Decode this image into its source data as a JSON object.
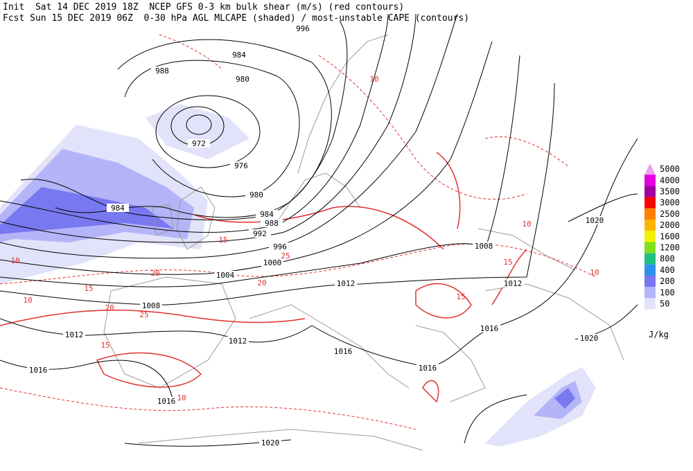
{
  "header": {
    "lines": [
      "Init  Sat 14 DEC 2019 18Z  NCEP GFS 0-3 km bulk shear (m/s) (red contours)",
      "Fcst Sun 15 DEC 2019 06Z  0-30 hPa AGL MLCAPE (shaded) / most-unstable CAPE (contours)"
    ]
  },
  "legend": {
    "unit": "J/kg",
    "levels": [
      {
        "label": "5000",
        "color": "#f0a0f0"
      },
      {
        "label": "4000",
        "color": "#e000e0"
      },
      {
        "label": "3500",
        "color": "#a000a0"
      },
      {
        "label": "3000",
        "color": "#ff0000"
      },
      {
        "label": "2500",
        "color": "#ff8000"
      },
      {
        "label": "2000",
        "color": "#ffb400"
      },
      {
        "label": "1600",
        "color": "#f0f000"
      },
      {
        "label": "1200",
        "color": "#80e020"
      },
      {
        "label": "800",
        "color": "#20c080"
      },
      {
        "label": "400",
        "color": "#3090f0"
      },
      {
        "label": "200",
        "color": "#7878f0"
      },
      {
        "label": "100",
        "color": "#b4b4f8"
      },
      {
        "label": "50",
        "color": "#e2e2fa"
      }
    ]
  },
  "isobar_labels": [
    "996",
    "984",
    "988",
    "980",
    "972",
    "976",
    "980",
    "984",
    "984",
    "988",
    "992",
    "996",
    "1000",
    "1004",
    "1008",
    "1012",
    "1012",
    "1012",
    "1016",
    "1016",
    "1016",
    "1016",
    "1008",
    "1012",
    "1020",
    "1020",
    "1016",
    "1020"
  ],
  "shear_labels": [
    "10",
    "10",
    "15",
    "20",
    "25",
    "20",
    "15",
    "10",
    "15",
    "20",
    "25",
    "10",
    "15",
    "15",
    "10",
    "10"
  ]
}
